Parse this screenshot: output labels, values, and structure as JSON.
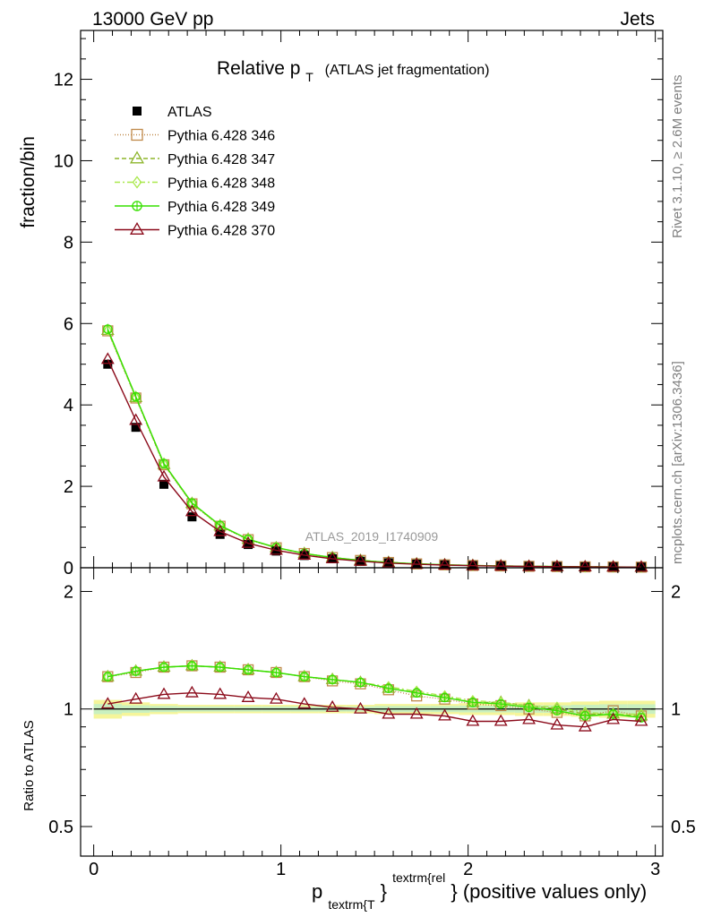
{
  "header": {
    "left_label": "13000 GeV pp",
    "right_label": "Jets"
  },
  "side_labels": {
    "rivet": "Rivet 3.1.10, ≥ 2.6M events",
    "mcplots": "mcplots.cern.ch [arXiv:1306.3436]"
  },
  "chart_data": [
    {
      "type": "line",
      "title_main": "Relative p",
      "title_sub": "T",
      "title_paren": "(ATLAS jet fragmentation)",
      "ylabel": "fraction/bin",
      "watermark": "ATLAS_2019_I1740909",
      "ylim": [
        0,
        13.2
      ],
      "xlim": [
        -0.07,
        3.04
      ],
      "yticks": [
        0,
        2,
        4,
        6,
        8,
        10,
        12
      ],
      "legend_position": "top-left",
      "x": [
        0.075,
        0.225,
        0.375,
        0.525,
        0.675,
        0.825,
        0.975,
        1.125,
        1.275,
        1.425,
        1.575,
        1.725,
        1.875,
        2.025,
        2.175,
        2.325,
        2.475,
        2.625,
        2.775,
        2.925
      ],
      "series": [
        {
          "name": "ATLAS",
          "color": "#000000",
          "marker": "square-filled",
          "dash": "none",
          "values": [
            5.0,
            3.45,
            2.05,
            1.25,
            0.82,
            0.57,
            0.41,
            0.3,
            0.22,
            0.16,
            0.12,
            0.09,
            0.07,
            0.055,
            0.045,
            0.035,
            0.03,
            0.025,
            0.02,
            0.017
          ]
        },
        {
          "name": "Pythia 6.428 346",
          "color": "#c08a4b",
          "marker": "square-open",
          "dash": "1,2",
          "values": [
            5.82,
            4.17,
            2.53,
            1.57,
            1.02,
            0.69,
            0.49,
            0.35,
            0.25,
            0.18,
            0.13,
            0.095,
            0.072,
            0.055,
            0.045,
            0.035,
            0.029,
            0.023,
            0.02,
            0.016
          ]
        },
        {
          "name": "Pythia 6.428 347",
          "color": "#8db52b",
          "marker": "triangle-open",
          "dash": "5,3",
          "values": [
            5.83,
            4.18,
            2.54,
            1.58,
            1.03,
            0.7,
            0.49,
            0.35,
            0.25,
            0.18,
            0.13,
            0.096,
            0.073,
            0.056,
            0.046,
            0.036,
            0.03,
            0.024,
            0.02,
            0.016
          ]
        },
        {
          "name": "Pythia 6.428 348",
          "color": "#a9e84c",
          "marker": "diamond-open",
          "dash": "6,3,2,3",
          "values": [
            5.84,
            4.19,
            2.55,
            1.58,
            1.03,
            0.7,
            0.49,
            0.35,
            0.25,
            0.18,
            0.13,
            0.096,
            0.073,
            0.056,
            0.046,
            0.036,
            0.03,
            0.024,
            0.02,
            0.016
          ]
        },
        {
          "name": "Pythia 6.428 349",
          "color": "#37e000",
          "marker": "circle-open",
          "dash": "none",
          "values": [
            5.86,
            4.2,
            2.56,
            1.59,
            1.04,
            0.7,
            0.5,
            0.35,
            0.25,
            0.18,
            0.13,
            0.097,
            0.073,
            0.056,
            0.046,
            0.036,
            0.03,
            0.024,
            0.02,
            0.016
          ]
        },
        {
          "name": "Pythia 6.428 370",
          "color": "#8b0a1a",
          "marker": "triangle-open",
          "dash": "none",
          "values": [
            5.12,
            3.62,
            2.23,
            1.38,
            0.89,
            0.6,
            0.43,
            0.31,
            0.22,
            0.16,
            0.115,
            0.085,
            0.065,
            0.05,
            0.04,
            0.032,
            0.026,
            0.022,
            0.018,
            0.015
          ]
        }
      ]
    },
    {
      "type": "line",
      "ylabel": "Ratio to ATLAS",
      "xlabel_main": "p",
      "xlabel_sub": "textrm{T",
      "xlabel_brace": "}",
      "xlabel_sup": "textrm{rel",
      "xlabel_tail": "} (positive values only)",
      "ylim": [
        0.42,
        2.3
      ],
      "ytick_labels": [
        {
          "v": 0.5,
          "label": "0.5"
        },
        {
          "v": 1,
          "label": "1"
        },
        {
          "v": 2,
          "label": "2"
        }
      ],
      "xticks": [
        {
          "v": 0,
          "label": "0"
        },
        {
          "v": 1,
          "label": "1"
        },
        {
          "v": 2,
          "label": "2"
        },
        {
          "v": 3,
          "label": "3"
        }
      ],
      "x": [
        0.075,
        0.225,
        0.375,
        0.525,
        0.675,
        0.825,
        0.975,
        1.125,
        1.275,
        1.425,
        1.575,
        1.725,
        1.875,
        2.025,
        2.175,
        2.325,
        2.475,
        2.625,
        2.775,
        2.925
      ],
      "band_outer": [
        0.055,
        0.04,
        0.03,
        0.025,
        0.025,
        0.025,
        0.025,
        0.025,
        0.025,
        0.025,
        0.03,
        0.03,
        0.03,
        0.035,
        0.035,
        0.04,
        0.04,
        0.045,
        0.05,
        0.05
      ],
      "band_inner": [
        0.03,
        0.022,
        0.018,
        0.015,
        0.015,
        0.015,
        0.015,
        0.015,
        0.015,
        0.015,
        0.018,
        0.018,
        0.018,
        0.02,
        0.02,
        0.022,
        0.022,
        0.025,
        0.028,
        0.028
      ],
      "series": [
        {
          "name": "Pythia 6.428 346",
          "color": "#c08a4b",
          "marker": "square-open",
          "dash": "1,2",
          "values": [
            1.21,
            1.24,
            1.28,
            1.29,
            1.28,
            1.26,
            1.24,
            1.21,
            1.18,
            1.16,
            1.12,
            1.08,
            1.06,
            1.03,
            1.02,
            1.0,
            0.98,
            0.96,
            0.99,
            0.96
          ]
        },
        {
          "name": "Pythia 6.428 347",
          "color": "#8db52b",
          "marker": "triangle-open",
          "dash": "5,3",
          "values": [
            1.21,
            1.25,
            1.28,
            1.29,
            1.28,
            1.26,
            1.24,
            1.21,
            1.19,
            1.17,
            1.13,
            1.1,
            1.07,
            1.04,
            1.04,
            1.02,
            1.0,
            0.97,
            0.97,
            0.96
          ]
        },
        {
          "name": "Pythia 6.428 348",
          "color": "#a9e84c",
          "marker": "diamond-open",
          "dash": "6,3,2,3",
          "values": [
            1.21,
            1.25,
            1.28,
            1.29,
            1.28,
            1.26,
            1.24,
            1.21,
            1.19,
            1.17,
            1.14,
            1.11,
            1.08,
            1.05,
            1.04,
            1.02,
            1.01,
            0.98,
            0.97,
            0.97
          ]
        },
        {
          "name": "Pythia 6.428 349",
          "color": "#37e000",
          "marker": "circle-open",
          "dash": "none",
          "values": [
            1.21,
            1.25,
            1.28,
            1.29,
            1.28,
            1.26,
            1.24,
            1.21,
            1.19,
            1.17,
            1.13,
            1.1,
            1.07,
            1.04,
            1.03,
            1.01,
            0.99,
            0.96,
            0.97,
            0.95
          ]
        },
        {
          "name": "Pythia 6.428 370",
          "color": "#8b0a1a",
          "marker": "triangle-open",
          "dash": "none",
          "values": [
            1.03,
            1.06,
            1.09,
            1.1,
            1.09,
            1.07,
            1.06,
            1.03,
            1.01,
            1.0,
            0.97,
            0.97,
            0.96,
            0.93,
            0.93,
            0.94,
            0.91,
            0.9,
            0.94,
            0.93
          ]
        }
      ]
    }
  ]
}
